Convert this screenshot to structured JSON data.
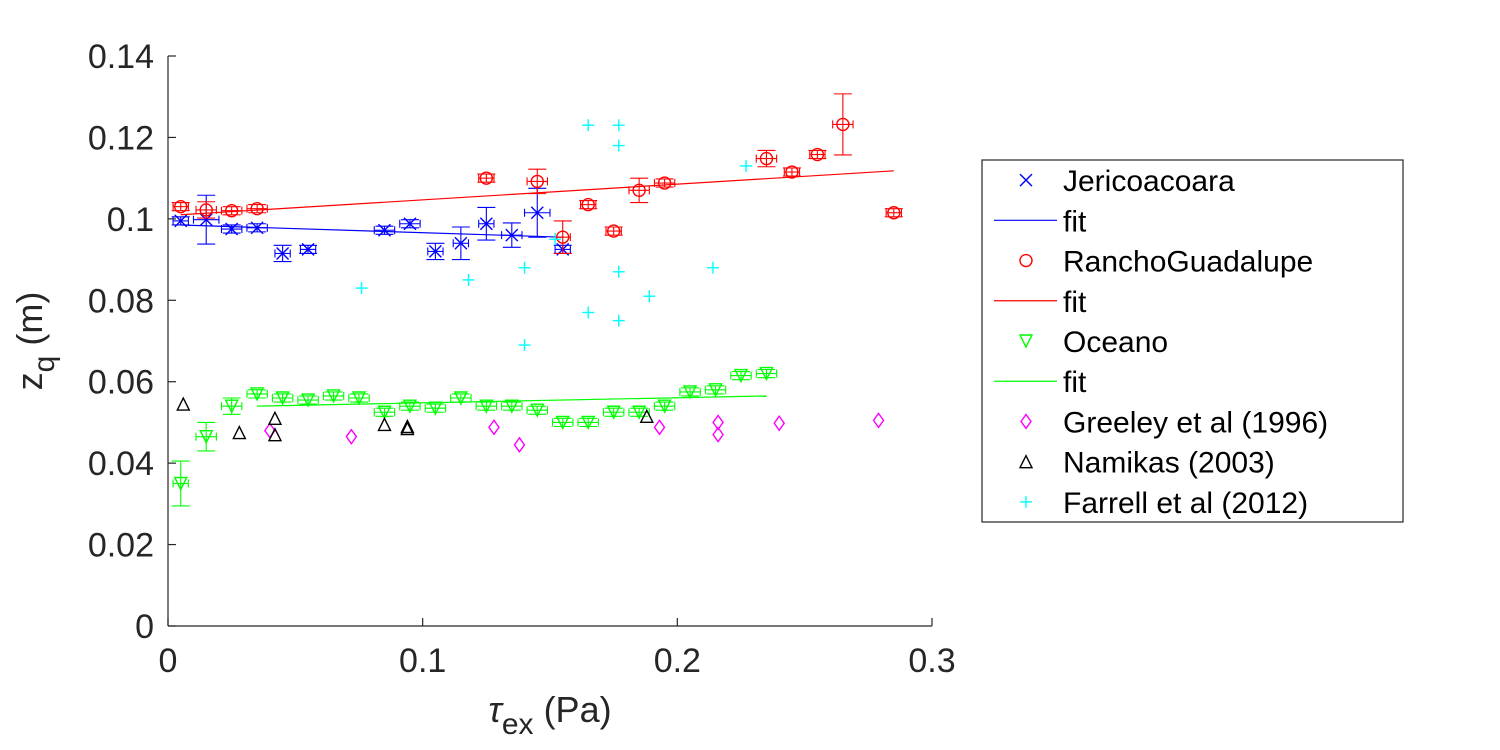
{
  "chart_data": {
    "type": "scatter",
    "xlabel_symbol": "τ",
    "xlabel_sub": "ex",
    "xlabel_unit": " (Pa)",
    "ylabel_symbol": "z",
    "ylabel_sub": "q",
    "ylabel_unit": " (m)",
    "xlim": [
      0,
      0.3
    ],
    "ylim": [
      0,
      0.14
    ],
    "xticks": [
      0,
      0.1,
      0.2,
      0.3
    ],
    "xtick_labels": [
      "0",
      "0.1",
      "0.2",
      "0.3"
    ],
    "yticks": [
      0,
      0.02,
      0.04,
      0.06,
      0.08,
      0.1,
      0.12,
      0.14
    ],
    "ytick_labels": [
      "0",
      "0.02",
      "0.04",
      "0.06",
      "0.08",
      "0.1",
      "0.12",
      "0.14"
    ],
    "grid": false,
    "legend_position": "outside-right",
    "series": [
      {
        "name": "Jericoacoara",
        "marker": "x",
        "color": "#0000ff",
        "x": [
          0.005,
          0.015,
          0.025,
          0.035,
          0.045,
          0.055,
          0.085,
          0.095,
          0.105,
          0.115,
          0.125,
          0.135,
          0.145,
          0.155
        ],
        "y": [
          0.0995,
          0.0998,
          0.0975,
          0.0978,
          0.0915,
          0.0925,
          0.0972,
          0.0988,
          0.092,
          0.094,
          0.0988,
          0.096,
          0.1015,
          0.0925
        ],
        "err": [
          0.001,
          0.006,
          0.001,
          0.001,
          0.002,
          0.001,
          0.001,
          0.001,
          0.002,
          0.004,
          0.004,
          0.003,
          0.006,
          0.001
        ],
        "xerr": [
          0.003,
          0.005,
          0.004,
          0.004,
          0.003,
          0.003,
          0.004,
          0.004,
          0.003,
          0.003,
          0.003,
          0.004,
          0.005,
          0.003
        ]
      },
      {
        "name": "fit",
        "type": "line",
        "color": "#0000ff",
        "x": [
          0.005,
          0.155
        ],
        "y": [
          0.0985,
          0.0955
        ]
      },
      {
        "name": "RanchoGuadalupe",
        "marker": "o",
        "color": "#ff0000",
        "x": [
          0.005,
          0.015,
          0.025,
          0.035,
          0.125,
          0.145,
          0.155,
          0.165,
          0.175,
          0.185,
          0.195,
          0.235,
          0.245,
          0.255,
          0.265,
          0.285
        ],
        "y": [
          0.103,
          0.1022,
          0.102,
          0.1025,
          0.11,
          0.1092,
          0.0955,
          0.1035,
          0.097,
          0.107,
          0.1088,
          0.1148,
          0.1115,
          0.1158,
          0.1232,
          0.1015
        ],
        "err": [
          0.001,
          0.002,
          0.001,
          0.001,
          0.001,
          0.003,
          0.004,
          0.001,
          0.001,
          0.003,
          0.001,
          0.002,
          0.001,
          0.001,
          0.0075,
          0.001
        ],
        "xerr": [
          0.003,
          0.004,
          0.004,
          0.004,
          0.003,
          0.004,
          0.003,
          0.003,
          0.003,
          0.004,
          0.004,
          0.004,
          0.003,
          0.003,
          0.004,
          0.003
        ]
      },
      {
        "name": "fit",
        "type": "line",
        "color": "#ff0000",
        "x": [
          0.005,
          0.285
        ],
        "y": [
          0.101,
          0.1118
        ]
      },
      {
        "name": "Oceano",
        "marker": "v",
        "color": "#00ff00",
        "x": [
          0.005,
          0.015,
          0.025,
          0.035,
          0.045,
          0.055,
          0.065,
          0.075,
          0.085,
          0.095,
          0.105,
          0.115,
          0.125,
          0.135,
          0.145,
          0.155,
          0.165,
          0.175,
          0.185,
          0.195,
          0.205,
          0.215,
          0.225,
          0.235
        ],
        "y": [
          0.035,
          0.0465,
          0.054,
          0.057,
          0.056,
          0.0555,
          0.0565,
          0.056,
          0.0525,
          0.054,
          0.0535,
          0.056,
          0.054,
          0.054,
          0.053,
          0.05,
          0.05,
          0.0525,
          0.0525,
          0.054,
          0.0575,
          0.058,
          0.0615,
          0.062
        ],
        "err": [
          0.0055,
          0.0035,
          0.002,
          0.001,
          0.001,
          0.001,
          0.001,
          0.001,
          0.001,
          0.001,
          0.001,
          0.001,
          0.001,
          0.001,
          0.001,
          0.001,
          0.001,
          0.001,
          0.001,
          0.001,
          0.001,
          0.001,
          0.001,
          0.001
        ],
        "xerr": [
          0.003,
          0.004,
          0.004,
          0.004,
          0.004,
          0.004,
          0.004,
          0.004,
          0.004,
          0.004,
          0.004,
          0.004,
          0.004,
          0.004,
          0.004,
          0.004,
          0.004,
          0.004,
          0.004,
          0.004,
          0.004,
          0.004,
          0.004,
          0.004
        ]
      },
      {
        "name": "fit",
        "type": "line",
        "color": "#00ff00",
        "x": [
          0.035,
          0.235
        ],
        "y": [
          0.054,
          0.0565
        ]
      },
      {
        "name": "Greeley et al (1996)",
        "marker": "diamond",
        "color": "#ff00ff",
        "x": [
          0.04,
          0.072,
          0.128,
          0.138,
          0.193,
          0.216,
          0.216,
          0.24,
          0.279
        ],
        "y": [
          0.048,
          0.0465,
          0.0488,
          0.0445,
          0.0488,
          0.05,
          0.047,
          0.0498,
          0.0505
        ]
      },
      {
        "name": "Namikas (2003)",
        "marker": "^",
        "color": "#000000",
        "x": [
          0.006,
          0.028,
          0.042,
          0.042,
          0.085,
          0.094,
          0.094,
          0.188
        ],
        "y": [
          0.0545,
          0.0475,
          0.051,
          0.047,
          0.0495,
          0.049,
          0.0485,
          0.0515
        ]
      },
      {
        "name": "Farrell et al (2012)",
        "marker": "+",
        "color": "#00ffff",
        "x": [
          0.076,
          0.118,
          0.14,
          0.14,
          0.152,
          0.165,
          0.165,
          0.177,
          0.177,
          0.177,
          0.177,
          0.189,
          0.214,
          0.227
        ],
        "y": [
          0.083,
          0.085,
          0.088,
          0.069,
          0.095,
          0.123,
          0.077,
          0.123,
          0.118,
          0.087,
          0.075,
          0.081,
          0.088,
          0.113
        ]
      }
    ]
  }
}
